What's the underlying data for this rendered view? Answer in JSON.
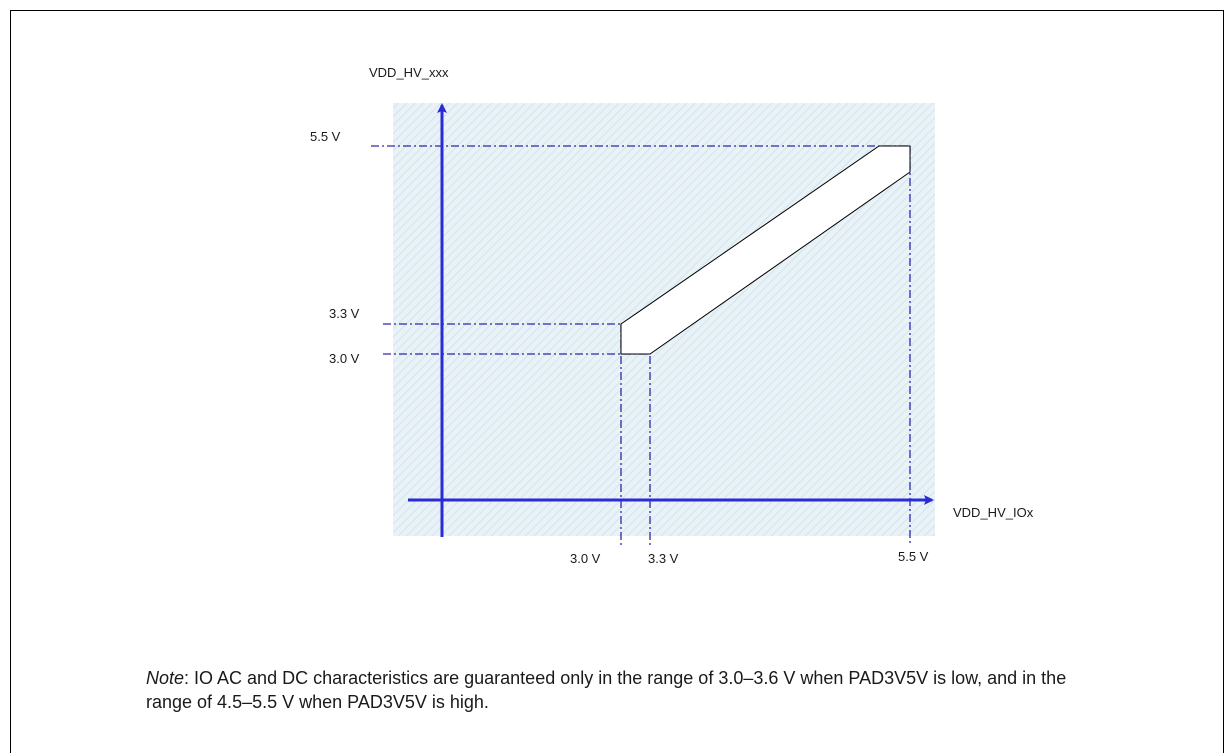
{
  "diagram": {
    "y_axis_label": "VDD_HV_xxx",
    "x_axis_label": "VDD_HV_IOx",
    "y_ticks": [
      "5.5 V",
      "3.3 V",
      "3.0 V"
    ],
    "x_ticks": [
      "3.0 V",
      "3.3 V",
      "5.5 V"
    ],
    "colors": {
      "axis": "#2b2bd6",
      "guide": "#2a2aa8",
      "area_fill": "#e6f1f6",
      "region_stroke": "#000000"
    }
  },
  "note": {
    "lead": "Note",
    "text": ": IO AC and DC characteristics are guaranteed only in the range of 3.0–3.6 V when PAD3V5V is low, and in the range of 4.5–5.5 V when PAD3V5V is high."
  }
}
